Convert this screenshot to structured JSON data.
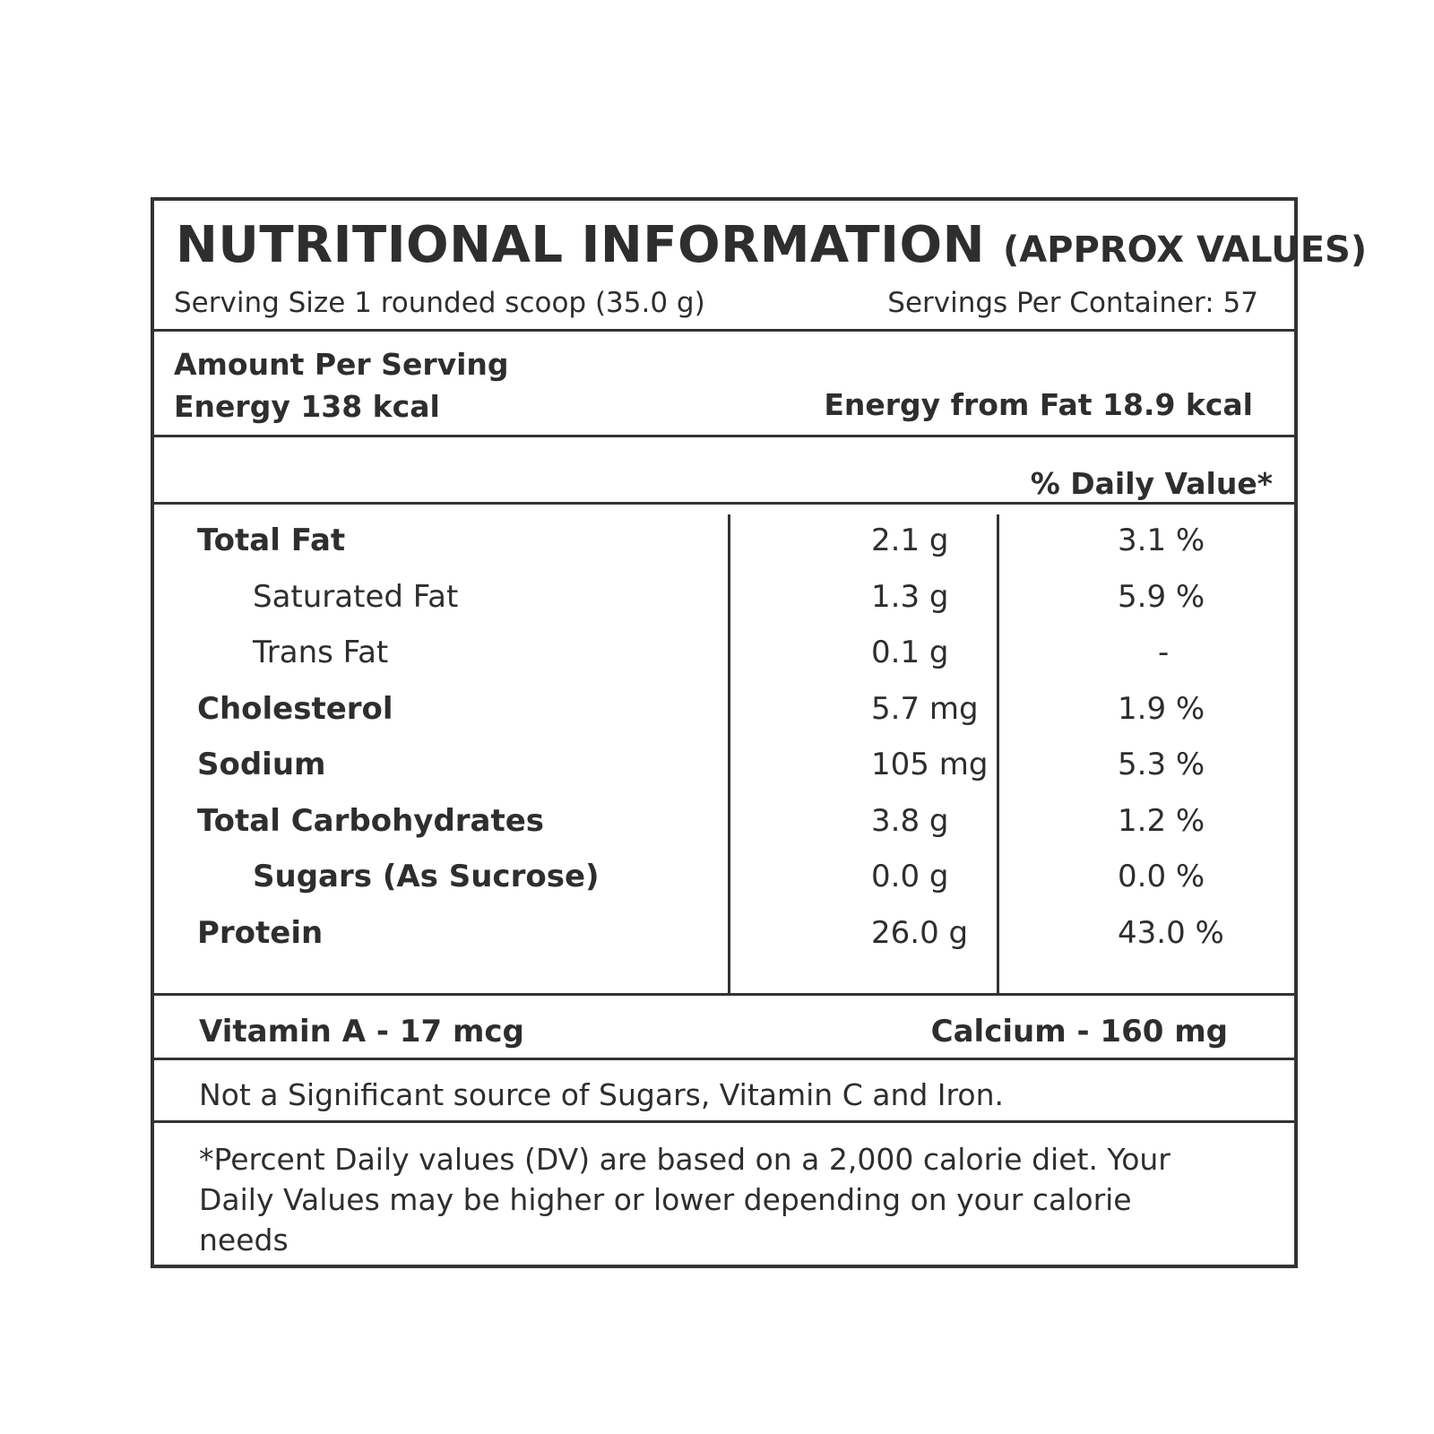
{
  "header": {
    "title": "NUTRITIONAL INFORMATION",
    "subtitle": "(APPROX VALUES)",
    "serving_size": "Serving Size 1 rounded scoop (35.0 g)",
    "servings_per_container": "Servings Per Container: 57"
  },
  "energy": {
    "amount_per_serving": "Amount Per Serving",
    "energy": "Energy 138 kcal",
    "energy_from_fat": "Energy from Fat 18.9 kcal"
  },
  "daily_value_header": "% Daily Value*",
  "nutrients": [
    {
      "name": "Total Fat",
      "amount": "2.1 g",
      "dv": "3.1 %",
      "bold": true,
      "indent": false
    },
    {
      "name": "Saturated Fat",
      "amount": "1.3 g",
      "dv": "5.9 %",
      "bold": false,
      "indent": true
    },
    {
      "name": "Trans Fat",
      "amount": "0.1 g",
      "dv": "-",
      "bold": false,
      "indent": true
    },
    {
      "name": "Cholesterol",
      "amount": "5.7 mg",
      "dv": "1.9 %",
      "bold": true,
      "indent": false
    },
    {
      "name": "Sodium",
      "amount": "105 mg",
      "dv": "5.3 %",
      "bold": true,
      "indent": false
    },
    {
      "name": "Total Carbohydrates",
      "amount": "3.8 g",
      "dv": "1.2 %",
      "bold": true,
      "indent": false
    },
    {
      "name": "Sugars (As Sucrose)",
      "amount": "0.0 g",
      "dv": "0.0 %",
      "bold": true,
      "indent": true
    },
    {
      "name": "Protein",
      "amount": "26.0 g",
      "dv": "43.0 %",
      "bold": true,
      "indent": false
    }
  ],
  "vitamins": {
    "vitamin_a": "Vitamin A - 17 mcg",
    "calcium": "Calcium - 160 mg"
  },
  "note": "Not a Significant source of Sugars, Vitamin C and Iron.",
  "footnote": "*Percent Daily values (DV) are based on a 2,000 calorie diet. Your Daily Values may be higher or lower depending on your calorie needs"
}
